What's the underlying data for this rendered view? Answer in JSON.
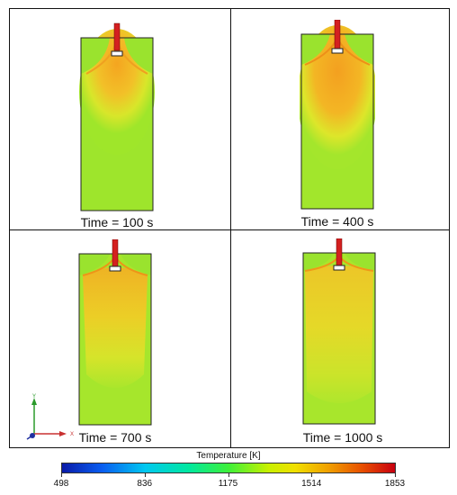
{
  "panels": [
    {
      "label": "Time = 100 s"
    },
    {
      "label": "Time = 400 s"
    },
    {
      "label": "Time = 700 s"
    },
    {
      "label": "Time = 1000 s"
    }
  ],
  "axes_triad": {
    "y": "Y",
    "x": "X"
  },
  "colorbar": {
    "title": "Temperature [K]",
    "ticks": [
      "498",
      "836",
      "1175",
      "1514",
      "1853"
    ],
    "min": 498,
    "max": 1853,
    "colors": [
      "#0a1aa8",
      "#00c8f0",
      "#3ef03a",
      "#f0a000",
      "#c80010"
    ]
  }
}
